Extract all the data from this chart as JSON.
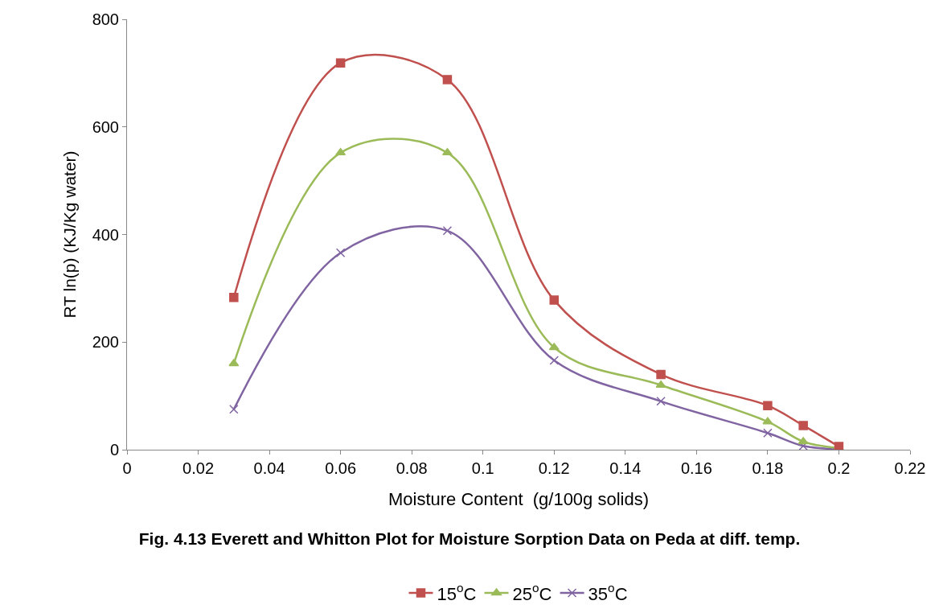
{
  "chart_data": {
    "type": "line",
    "title": "Fig. 4.13 Everett and Whitton Plot for Moisture Sorption Data on Peda at diff. temp.",
    "xlabel": "Moisture Content  (g/100g solids)",
    "ylabel": "RT ln(p) (KJ/Kg water)",
    "x": [
      0.03,
      0.06,
      0.09,
      0.12,
      0.15,
      0.18,
      0.19,
      0.2
    ],
    "series": [
      {
        "name": "15$^{o}$C",
        "color": "#c0504d",
        "marker": "square",
        "values": [
          283,
          719,
          688,
          278,
          140,
          82,
          45,
          6
        ]
      },
      {
        "name": "25$^{o}$C",
        "color": "#9bbb59",
        "marker": "triangle",
        "values": [
          160,
          552,
          552,
          190,
          120,
          52,
          15,
          3
        ]
      },
      {
        "name": "35$^{o}$C",
        "color": "#8064a2",
        "marker": "cross",
        "values": [
          75,
          366,
          407,
          166,
          90,
          31,
          7,
          1
        ]
      }
    ],
    "xlim": [
      0,
      0.22
    ],
    "xticks": [
      0,
      0.02,
      0.04,
      0.06,
      0.08,
      0.1,
      0.12,
      0.14,
      0.16,
      0.18,
      0.2,
      0.22
    ],
    "ylim": [
      0,
      800
    ],
    "yticks": [
      0,
      200,
      400,
      600,
      800
    ],
    "grid": false,
    "legend": "bottom"
  }
}
